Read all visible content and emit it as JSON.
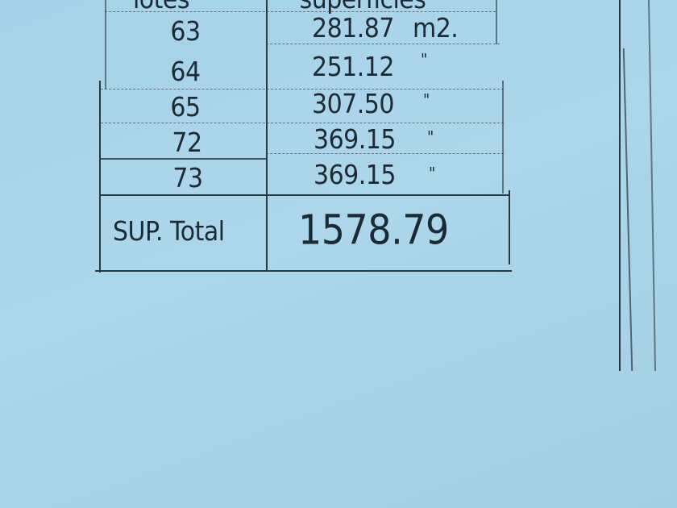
{
  "table": {
    "headers": {
      "lot": "lotes",
      "area": "superficies"
    },
    "rows": [
      {
        "lot": "63",
        "area": "281.87",
        "unit": "m2."
      },
      {
        "lot": "64",
        "area": "251.12",
        "unit": "\""
      },
      {
        "lot": "65",
        "area": "307.50",
        "unit": "\""
      },
      {
        "lot": "72",
        "area": "369.15",
        "unit": "\""
      },
      {
        "lot": "73",
        "area": "369.15",
        "unit": "\""
      }
    ],
    "total_label": "SUP. Total",
    "total_value": "1578.79"
  }
}
